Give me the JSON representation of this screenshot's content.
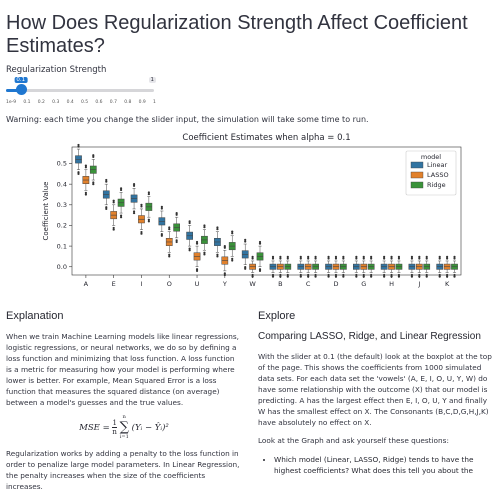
{
  "page": {
    "title": "How Does Regularization Strength Affect Coefficient Estimates?",
    "slider": {
      "label": "Regularization Strength",
      "current_label": "0.1",
      "max_label": "1",
      "value_fraction": 0.1,
      "ticks": [
        "1e-9",
        "0.1",
        "0.2",
        "0.3",
        "0.4",
        "0.5",
        "0.6",
        "0.7",
        "0.8",
        "0.9",
        "1"
      ]
    },
    "warning": "Warning: each time you change the slider input, the simulation will take some time to run."
  },
  "chart_data": {
    "type": "box",
    "title": "Coefficient Estimates when alpha = 0.1",
    "ylabel": "Coefficient Value",
    "xlabel": "",
    "ylim": [
      -0.04,
      0.58
    ],
    "yticks": [
      "0.0",
      "0.1",
      "0.2",
      "0.3",
      "0.4",
      "0.5"
    ],
    "grid": false,
    "legend": {
      "title": "model",
      "position": "top-right"
    },
    "categories": [
      "A",
      "E",
      "I",
      "O",
      "U",
      "Y",
      "W",
      "B",
      "C",
      "D",
      "G",
      "H",
      "J",
      "K"
    ],
    "series": [
      {
        "name": "Linear",
        "color": "#3274a1",
        "medians": [
          0.52,
          0.35,
          0.33,
          0.22,
          0.15,
          0.12,
          0.06,
          0.0,
          0.0,
          0.0,
          0.0,
          0.0,
          0.0,
          0.0
        ]
      },
      {
        "name": "LASSO",
        "color": "#e1812c",
        "medians": [
          0.42,
          0.25,
          0.23,
          0.12,
          0.05,
          0.03,
          0.0,
          0.0,
          0.0,
          0.0,
          0.0,
          0.0,
          0.0,
          0.0
        ]
      },
      {
        "name": "Ridge",
        "color": "#3a923a",
        "medians": [
          0.47,
          0.31,
          0.29,
          0.19,
          0.13,
          0.1,
          0.05,
          0.0,
          0.0,
          0.0,
          0.0,
          0.0,
          0.0,
          0.0
        ]
      }
    ]
  },
  "explanation": {
    "heading": "Explanation",
    "p1": "When we train Machine Learning models like linear regressions, logistic regressions, or neural networks, we do so by defining a loss function and minimizing that loss function. A loss function is a metric for measuring how your model is performing where lower is better. For example, Mean Squared Error is a loss function that measures the squared distance (on average) between a model's guesses and the true values.",
    "formula": {
      "lhs": "MSE =",
      "frac_num": "1",
      "frac_den": "n",
      "sum_top": "n",
      "sum_bottom": "i=1",
      "body": "(Yᵢ − Ŷᵢ)²"
    },
    "p2": "Regularization works by adding a penalty to the loss function in order to penalize large model parameters. In Linear Regression, the penalty increases when the size of the coefficients increases."
  },
  "explore": {
    "heading": "Explore",
    "subheading": "Comparing LASSO, Ridge, and Linear Regression",
    "p1": "With the slider at 0.1 (the default) look at the boxplot at the top of the page. This shows the coefficients from 1000 simulated data sets. For each data set the 'vowels' (A, E, I, O, U, Y, W) do have some relationship with the outcome (X) that our model is predicting. A has the largest effect then E, I, O, U, Y and finally W has the smallest effect on X. The Consonants (B,C,D,G,H,J,K) have absolutely no effect on X.",
    "p2": "Look at the Graph and ask yourself these questions:",
    "bullets": [
      "Which model (Linear, LASSO, Ridge) tends to have the highest coefficients? What does this tell you about the"
    ]
  }
}
